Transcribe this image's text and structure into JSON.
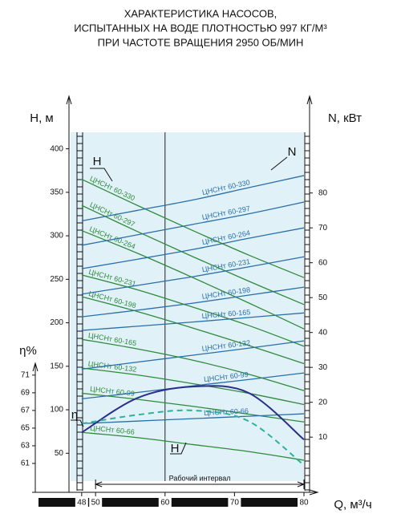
{
  "chart_data": {
    "type": "line",
    "title": [
      "ХАРАКТЕРИСТИКА НАСОСОВ,",
      "ИСПЫТАННЫХ НА ВОДЕ ПЛОТНОСТЬЮ 997 КГ/М³",
      "ПРИ ЧАСТОТЕ ВРАЩЕНИЯ 2950 ОБ/МИН"
    ],
    "x_label": "Q, м³/ч",
    "y_label": "Н, м",
    "y2_label": "N, кВт",
    "y3_label": "η%",
    "xlim": [
      46.4,
      80
    ],
    "xticks": [
      48,
      50,
      60,
      70,
      80
    ],
    "ylim": [
      18,
      419
    ],
    "yticks": [
      50,
      100,
      150,
      200,
      250,
      300,
      350,
      400
    ],
    "y2lim": [
      -2.6,
      97.4
    ],
    "y2ticks": [
      10,
      20,
      30,
      40,
      50,
      60,
      70,
      80
    ],
    "y3lim": [
      59,
      98.5
    ],
    "y3ticks": [
      61,
      63,
      65,
      67,
      69,
      71
    ],
    "x": [
      48,
      56,
      64,
      72,
      80
    ],
    "series": [
      {
        "name": "ЦНСНт 60-330",
        "color": "#2f8a3c",
        "axis": "y",
        "values": [
          365,
          335,
          306,
          278,
          252
        ]
      },
      {
        "name": "ЦНСНт 60-297",
        "color": "#2f8a3c",
        "axis": "y",
        "values": [
          335,
          305,
          276,
          248,
          221
        ]
      },
      {
        "name": "ЦНСНт 60-264",
        "color": "#2f8a3c",
        "axis": "y",
        "values": [
          306,
          280,
          252,
          223,
          193
        ]
      },
      {
        "name": "ЦНСНт 60-231",
        "color": "#2f8a3c",
        "axis": "y",
        "values": [
          255,
          238,
          218,
          197,
          173
        ]
      },
      {
        "name": "ЦНСНт 60-198",
        "color": "#2f8a3c",
        "axis": "y",
        "values": [
          230,
          213,
          194,
          174,
          153
        ]
      },
      {
        "name": "ЦНСНт 60-165",
        "color": "#2f8a3c",
        "axis": "y",
        "values": [
          181,
          170,
          157,
          141,
          122
        ]
      },
      {
        "name": "ЦНСНт 60-132",
        "color": "#2f8a3c",
        "axis": "y",
        "values": [
          148,
          140,
          130,
          119,
          106
        ]
      },
      {
        "name": "ЦНСНт 60-99",
        "color": "#2f8a3c",
        "axis": "y",
        "values": [
          119,
          112,
          104,
          95,
          86
        ]
      },
      {
        "name": "ЦНСНт 60-66",
        "color": "#2f8a3c",
        "axis": "y",
        "values": [
          74,
          68,
          60,
          52,
          42
        ]
      },
      {
        "name": "ЦНСНт 60-330",
        "color": "#2a6fa8",
        "axis": "y2",
        "values": [
          72,
          75,
          78,
          81.5,
          85
        ]
      },
      {
        "name": "ЦНСНт 60-297",
        "color": "#2a6fa8",
        "axis": "y2",
        "values": [
          65,
          68,
          71,
          74,
          77.4
        ]
      },
      {
        "name": "ЦНСНт 60-264",
        "color": "#2a6fa8",
        "axis": "y2",
        "values": [
          58.3,
          61,
          63.8,
          67,
          70
        ]
      },
      {
        "name": "ЦНСНт 60-231",
        "color": "#2a6fa8",
        "axis": "y2",
        "values": [
          51,
          53.5,
          56,
          58.8,
          61.7
        ]
      },
      {
        "name": "ЦНСНт 60-198",
        "color": "#2a6fa8",
        "axis": "y2",
        "values": [
          44.5,
          46.4,
          48.4,
          50.7,
          53
        ]
      },
      {
        "name": "ЦНСНт 60-165",
        "color": "#2a6fa8",
        "axis": "y2",
        "values": [
          40.6,
          41.8,
          43,
          44.3,
          45.6
        ]
      },
      {
        "name": "ЦНСНт 60-132",
        "color": "#2a6fa8",
        "axis": "y2",
        "values": [
          29.5,
          31.5,
          33.5,
          35.5,
          37.6
        ]
      },
      {
        "name": "ЦНСНт 60-99",
        "color": "#2a6fa8",
        "axis": "y2",
        "values": [
          21,
          22.8,
          24.7,
          26.5,
          28.4
        ]
      },
      {
        "name": "ЦНСНт 60-66",
        "color": "#2a6fa8",
        "axis": "y2",
        "values": [
          13.9,
          14.6,
          15.3,
          16,
          16.7
        ]
      },
      {
        "color": "#2b2e8a",
        "axis": "y3",
        "values": [
          64.5,
          68.4,
          69.7,
          69,
          63.7
        ]
      },
      {
        "color": "#2bb39a",
        "axis": "y3",
        "style": "dashed",
        "values": [
          65.5,
          66.5,
          67,
          65.8,
          60.8
        ]
      }
    ],
    "annotations": [
      "Н",
      "N",
      "η",
      "Н"
    ],
    "reference_x": 60,
    "interval": [
      50,
      80
    ],
    "interval_label": "Рабочий интервал"
  }
}
